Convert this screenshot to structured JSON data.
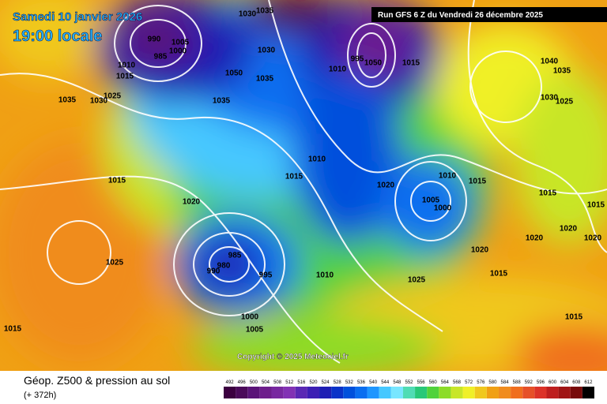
{
  "header": {
    "date": "Samedi 10 janvier 2026",
    "time": "19:00 locale",
    "run": "Run GFS 6 Z du Vendredi 26 décembre 2025"
  },
  "copyright": "Copyright © 2025 Meteociel.fr",
  "footer": {
    "title": "Géop. Z500 & pression au sol",
    "lead": "(+ 372h)"
  },
  "isobars": [
    "1035",
    "1030",
    "1025",
    "1010",
    "1015",
    "990",
    "985",
    "1005",
    "1000",
    "1050",
    "1035",
    "1035",
    "1030",
    "1035",
    "1030",
    "1010",
    "995",
    "1050",
    "1015",
    "1040",
    "1035",
    "1030",
    "1025",
    "1015",
    "1020",
    "1015",
    "1010",
    "1020",
    "1010",
    "1005",
    "1000",
    "1015",
    "1015",
    "1015",
    "1020",
    "1020",
    "1020",
    "1020",
    "1015",
    "1025",
    "985",
    "990",
    "980",
    "995",
    "1010",
    "1025",
    "1000",
    "1005",
    "1015",
    "1015"
  ],
  "legend": {
    "labels": [
      "492",
      "496",
      "500",
      "504",
      "508",
      "512",
      "516",
      "520",
      "524",
      "528",
      "532",
      "536",
      "540",
      "544",
      "548",
      "552",
      "556",
      "560",
      "564",
      "568",
      "572",
      "576",
      "580",
      "584",
      "588",
      "592",
      "596",
      "600",
      "604",
      "608",
      "612"
    ],
    "colors": [
      "#3c0040",
      "#4b0a5a",
      "#5a1478",
      "#6e1e8c",
      "#7828a0",
      "#8232b4",
      "#5a28b4",
      "#3c1eb4",
      "#1e1eb4",
      "#0a32c8",
      "#0050dc",
      "#0a6ef0",
      "#1e96ff",
      "#46c8ff",
      "#78e6ff",
      "#50dcb4",
      "#28c878",
      "#50d23c",
      "#8cdc28",
      "#c8e628",
      "#f0f028",
      "#f0c81e",
      "#f0a014",
      "#f08c1e",
      "#f06e1e",
      "#e65028",
      "#dc3228",
      "#be1e1e",
      "#a01414",
      "#780a0a",
      "#000000"
    ]
  }
}
